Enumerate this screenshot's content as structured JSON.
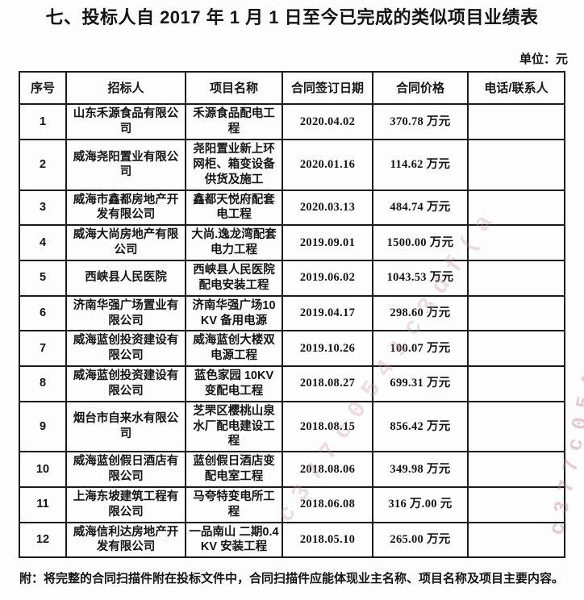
{
  "doc": {
    "title": "七、投标人自 2017 年 1 月 1 日至今已完成的类似项目业绩表",
    "unit_label": "单位：元",
    "footnote": "附：将完整的合同扫描件附在投标文件中，合同扫描件应能体现业主名称、项目名称及项目主要内容。"
  },
  "table": {
    "headers": [
      "序号",
      "招标人",
      "项目名称",
      "合同签订日期",
      "合同价格",
      "电话/联系人"
    ],
    "column_keys": [
      "seq",
      "tenderer",
      "project",
      "date",
      "price",
      "contact"
    ],
    "rows": [
      {
        "seq": "1",
        "tenderer": "山东禾源食品有限公司",
        "project": "禾源食品配电工程",
        "date": "2020.04.02",
        "price": "370.78 万元",
        "contact": ""
      },
      {
        "seq": "2",
        "tenderer": "威海尧阳置业有限公司",
        "project": "尧阳置业新上环网柜、箱变设备供货及施工",
        "date": "2020.01.16",
        "price": "114.62 万元",
        "contact": ""
      },
      {
        "seq": "3",
        "tenderer": "威海市鑫都房地产开发有限公司",
        "project": "鑫都天悦府配套电工程",
        "date": "2020.03.13",
        "price": "484.74 万元",
        "contact": ""
      },
      {
        "seq": "4",
        "tenderer": "威海大尚房地产有限公司",
        "project": "大尚.逸龙湾配套电力工程",
        "date": "2019.09.01",
        "price": "1500.00 万元",
        "contact": ""
      },
      {
        "seq": "5",
        "tenderer": "西峡县人民医院",
        "project": "西峡县人民医院配电安装工程",
        "date": "2019.06.02",
        "price": "1043.53 万元",
        "contact": ""
      },
      {
        "seq": "6",
        "tenderer": "济南华强广场置业有限公司",
        "project": "济南华强广场10KV 备用电源",
        "date": "2019.04.17",
        "price": "298.60 万元",
        "contact": ""
      },
      {
        "seq": "7",
        "tenderer": "威海蓝创投资建设有限公司",
        "project": "威海蓝创大楼双电源工程",
        "date": "2019.10.26",
        "price": "100.07 万元",
        "contact": ""
      },
      {
        "seq": "8",
        "tenderer": "威海蓝创投资建设有限公司",
        "project": "蓝色家园 10KV 变配电工程",
        "date": "2018.08.27",
        "price": "699.31 万元",
        "contact": ""
      },
      {
        "seq": "9",
        "tenderer": "烟台市自来水有限公司",
        "project": "芝罘区樱桃山泉水厂配电建设工程",
        "date": "2018.08.15",
        "price": "856.42 万元",
        "contact": ""
      },
      {
        "seq": "10",
        "tenderer": "威海蓝创假日酒店有限公司",
        "project": "蓝创假日酒店变配电室工程",
        "date": "2018.08.06",
        "price": "349.98 万元",
        "contact": ""
      },
      {
        "seq": "11",
        "tenderer": "上海东坡建筑工程有限公司",
        "project": "马夸特变电所工程",
        "date": "2018.06.08",
        "price": "316 万.00 元",
        "contact": ""
      },
      {
        "seq": "12",
        "tenderer": "威海信利达房地产开发有限公司",
        "project": "一品南山 二期0.4KV 安装工程",
        "date": "2018.05.10",
        "price": "265.00 万元",
        "contact": ""
      }
    ]
  },
  "watermark": {
    "text": "c377c0541c3df(a"
  }
}
